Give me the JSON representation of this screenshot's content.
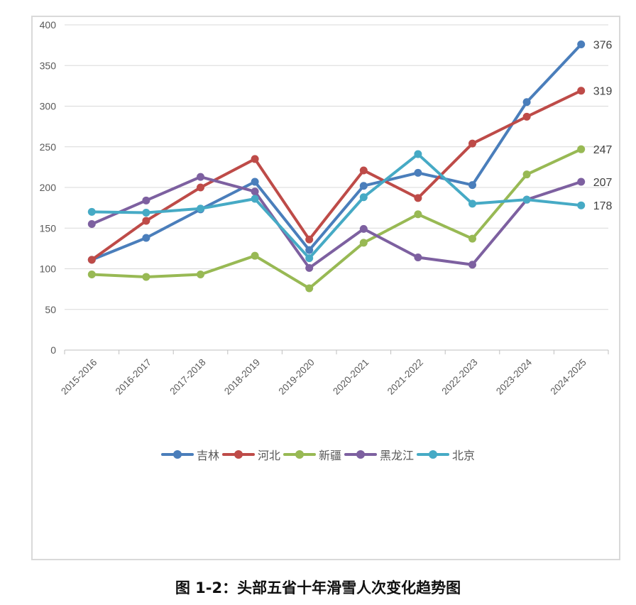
{
  "caption": "图 1-2：头部五省十年滑雪人次变化趋势图",
  "chart_data": {
    "type": "line",
    "title": "图 1-2：头部五省十年滑雪人次变化趋势图",
    "xlabel": "",
    "ylabel": "",
    "ylim": [
      0,
      400
    ],
    "yticks": [
      0,
      50,
      100,
      150,
      200,
      250,
      300,
      350,
      400
    ],
    "grid": true,
    "legend_position": "bottom",
    "categories": [
      "2015-2016",
      "2016-2017",
      "2017-2018",
      "2018-2019",
      "2019-2020",
      "2020-2021",
      "2021-2022",
      "2022-2023",
      "2023-2024",
      "2024-2025"
    ],
    "series": [
      {
        "name": "吉林",
        "color": "#4a7ebb",
        "values": [
          111,
          138,
          173,
          207,
          123,
          202,
          218,
          203,
          305,
          376
        ]
      },
      {
        "name": "河北",
        "color": "#be4b48",
        "values": [
          111,
          159,
          200,
          235,
          136,
          221,
          187,
          254,
          287,
          319
        ]
      },
      {
        "name": "新疆",
        "color": "#98b954",
        "values": [
          93,
          90,
          93,
          116,
          76,
          132,
          167,
          137,
          216,
          247
        ]
      },
      {
        "name": "黑龙江",
        "color": "#7d60a0",
        "values": [
          155,
          184,
          213,
          195,
          101,
          149,
          114,
          105,
          185,
          207
        ]
      },
      {
        "name": "北京",
        "color": "#46aac5",
        "values": [
          170,
          169,
          174,
          186,
          113,
          188,
          241,
          180,
          185,
          178
        ]
      }
    ],
    "end_labels": [
      "376",
      "319",
      "247",
      "207",
      "178"
    ]
  }
}
